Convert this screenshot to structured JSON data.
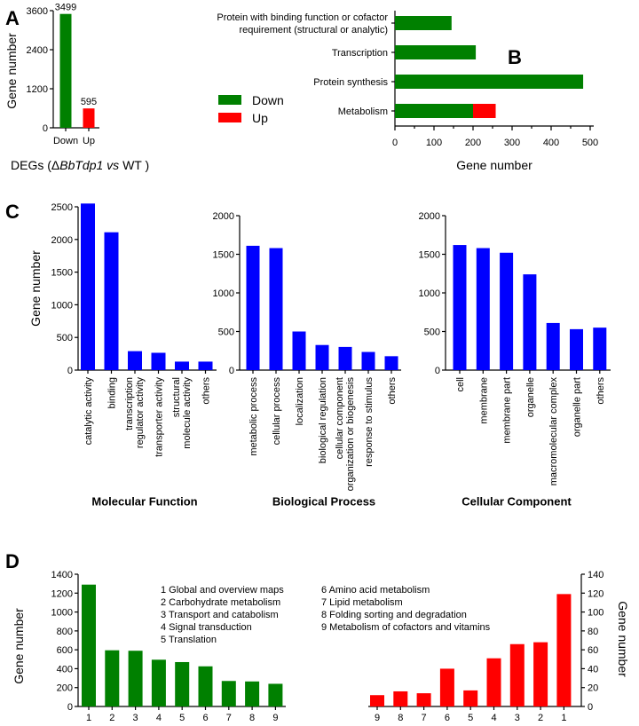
{
  "panel_labels": [
    "A",
    "B",
    "C",
    "D"
  ],
  "colors": {
    "down": "#008000",
    "up": "#ff0000",
    "go": "#0000ff"
  },
  "chart_data": [
    {
      "id": "A",
      "type": "bar",
      "categories": [
        "Down",
        "Up"
      ],
      "values": [
        3499,
        595
      ],
      "data_labels": [
        "3499",
        "595"
      ],
      "ylabel": "Gene number",
      "ylim": [
        0,
        3600
      ],
      "yticks": [
        "0",
        "1200",
        "2400",
        "3600"
      ],
      "xlabel_parts": [
        "DEGs (",
        "Δ",
        "BbTdp1",
        " vs ",
        "WT )"
      ]
    },
    {
      "id": "B",
      "type": "bar",
      "orientation": "horizontal",
      "stacked": true,
      "categories": [
        "Protein with binding function or cofactor|requirement (structural or analytic)",
        "Transcription",
        "Protein synthesis",
        "Metabolism"
      ],
      "series": [
        {
          "name": "Down",
          "values": [
            145,
            207,
            482,
            200
          ]
        },
        {
          "name": "Up",
          "values": [
            0,
            0,
            0,
            58
          ]
        }
      ],
      "xlabel": "Gene number",
      "xlim": [
        0,
        500
      ],
      "xticks": [
        "0",
        "100",
        "200",
        "300",
        "400",
        "500"
      ],
      "legend": [
        "Down",
        "Up"
      ]
    },
    {
      "id": "C1",
      "type": "bar",
      "title": "Molecular Function",
      "ylabel": "Gene number",
      "categories": [
        "catalytic activity",
        "binding",
        "transcription regulator activity",
        "transporter activity",
        "structural molecule activity",
        "others"
      ],
      "values": [
        2550,
        2110,
        290,
        265,
        130,
        130
      ],
      "ylim": [
        0,
        2500
      ],
      "yticks": [
        "0",
        "500",
        "1000",
        "1500",
        "2000",
        "2500"
      ]
    },
    {
      "id": "C2",
      "type": "bar",
      "title": "Biological Process",
      "categories": [
        "metabolic process",
        "cellular process",
        "localization",
        "biological regulation",
        "cellular component organization or biogenesis",
        "response to stimulus",
        "others"
      ],
      "values": [
        1610,
        1580,
        500,
        325,
        300,
        235,
        180
      ],
      "ylim": [
        0,
        2000
      ],
      "yticks": [
        "0",
        "500",
        "1000",
        "1500",
        "2000"
      ]
    },
    {
      "id": "C3",
      "type": "bar",
      "title": "Cellular Component",
      "categories": [
        "cell",
        "membrane",
        "membrane part",
        "organelle",
        "macromolecular complex",
        "organelle part",
        "others"
      ],
      "values": [
        1620,
        1580,
        1520,
        1240,
        610,
        530,
        550
      ],
      "ylim": [
        0,
        2000
      ],
      "yticks": [
        "0",
        "500",
        "1000",
        "1500",
        "2000"
      ]
    },
    {
      "id": "D1",
      "type": "bar",
      "ylabel": "Gene number",
      "categories": [
        "1",
        "2",
        "3",
        "4",
        "5",
        "6",
        "7",
        "8",
        "9"
      ],
      "values": [
        1290,
        595,
        590,
        495,
        470,
        425,
        270,
        265,
        240
      ],
      "ylim": [
        0,
        1400
      ],
      "yticks": [
        "0",
        "200",
        "400",
        "600",
        "800",
        "1000",
        "1200",
        "1400"
      ]
    },
    {
      "id": "D2",
      "type": "bar",
      "ylabel": "Gene number",
      "categories": [
        "9",
        "8",
        "7",
        "6",
        "5",
        "4",
        "3",
        "2",
        "1"
      ],
      "values": [
        12,
        16,
        14,
        40,
        17,
        51,
        66,
        68,
        119
      ],
      "ylim": [
        0,
        140
      ],
      "yticks": [
        "0",
        "20",
        "40",
        "60",
        "80",
        "100",
        "120",
        "140"
      ]
    }
  ],
  "kegg_legend": [
    "1 Global and overview maps",
    "2 Carbohydrate metabolism",
    "3 Transport and catabolism",
    "4 Signal transduction",
    "5 Translation",
    "6 Amino acid metabolism",
    "7 Lipid metabolism",
    "8 Folding sorting and degradation",
    "9 Metabolism of cofactors and vitamins"
  ]
}
